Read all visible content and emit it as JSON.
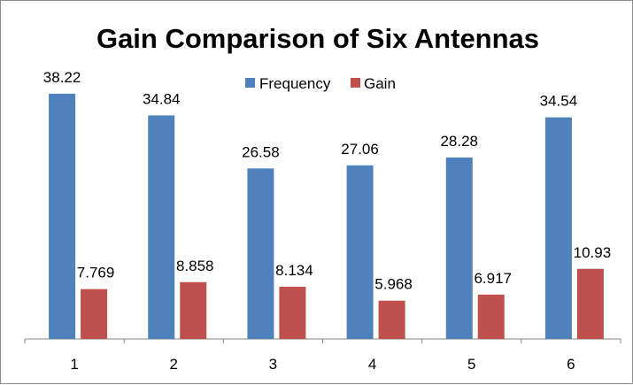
{
  "chart_data": {
    "type": "bar",
    "title": "Gain Comparison of Six Antennas",
    "categories": [
      "1",
      "2",
      "3",
      "4",
      "5",
      "6"
    ],
    "series": [
      {
        "name": "Frequency",
        "color": "#4F81BD",
        "values": [
          38.22,
          34.84,
          26.58,
          27.06,
          28.28,
          34.54
        ],
        "labels": [
          "38.22",
          "34.84",
          "26.58",
          "27.06",
          "28.28",
          "34.54"
        ]
      },
      {
        "name": "Gain",
        "color": "#C0504D",
        "values": [
          7.769,
          8.858,
          8.134,
          5.968,
          6.917,
          10.93
        ],
        "labels": [
          "7.769",
          "8.858",
          "8.134",
          "5.968",
          "6.917",
          "10.93"
        ]
      }
    ],
    "ylim": [
      0,
      40
    ],
    "legend": "top",
    "grid": false,
    "xlabel": "",
    "ylabel": ""
  }
}
